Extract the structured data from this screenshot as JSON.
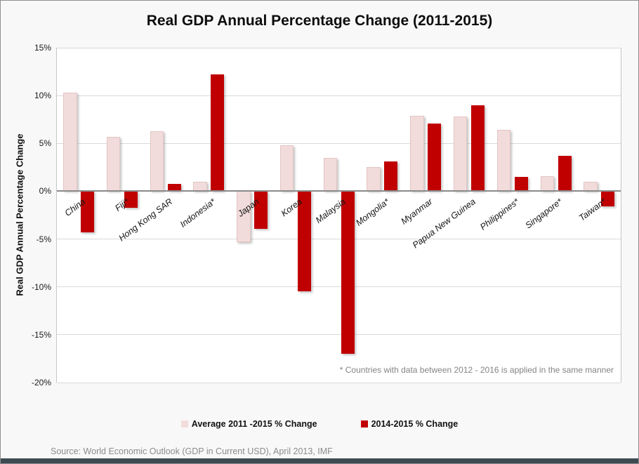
{
  "title": "Real GDP Annual Percentage Change (2011-2015)",
  "y_axis_title": "Real GDP Annual Percentage Change",
  "annotation": "* Countries with  data between  2012 - 2016 is applied in the same manner",
  "source": "Source: World Economic Outlook (GDP in Current USD), April 2013, IMF",
  "colors": {
    "series_avg": "#f2dcdb",
    "series_recent": "#c00000",
    "gridline": "#d9d9d9",
    "zero_axis": "#8a8a8a",
    "footer_strip": "#3d4a52",
    "note_gray": "#848484"
  },
  "legend": [
    {
      "label": "Average 2011 -2015 % Change",
      "color": "#f2dcdb"
    },
    {
      "label": "2014-2015 % Change",
      "color": "#c00000"
    }
  ],
  "chart_data": {
    "type": "bar",
    "title": "Real GDP Annual Percentage Change (2011-2015)",
    "xlabel": "",
    "ylabel": "Real GDP Annual Percentage Change",
    "ylim": [
      -20,
      15
    ],
    "ytick_step": 5,
    "ytick_format": "percent",
    "grid": true,
    "legend_position": "bottom",
    "categories": [
      "China",
      "Fiji*",
      "Hong Kong SAR",
      "Indonesia*",
      "Japan",
      "Korea",
      "Malaysia",
      "Mongolia*",
      "Myanmar",
      "Papua New Guinea",
      "Philippines*",
      "Singapore*",
      "Taiwan*"
    ],
    "series": [
      {
        "name": "Average 2011 -2015 % Change",
        "color": "#f2dcdb",
        "values": [
          10.3,
          5.7,
          6.3,
          1.0,
          -5.3,
          4.8,
          3.5,
          2.5,
          7.9,
          7.8,
          6.4,
          1.6,
          1.0
        ]
      },
      {
        "name": "2014-2015 % Change",
        "color": "#c00000",
        "values": [
          -4.3,
          -1.7,
          0.8,
          12.2,
          -3.9,
          -10.5,
          -17.0,
          3.1,
          7.1,
          9.0,
          1.5,
          3.7,
          -1.6
        ]
      }
    ],
    "footnote": "* Countries with  data between  2012 - 2016 is applied in the same manner",
    "source": "Source: World Economic Outlook (GDP in Current USD), April 2013, IMF"
  }
}
